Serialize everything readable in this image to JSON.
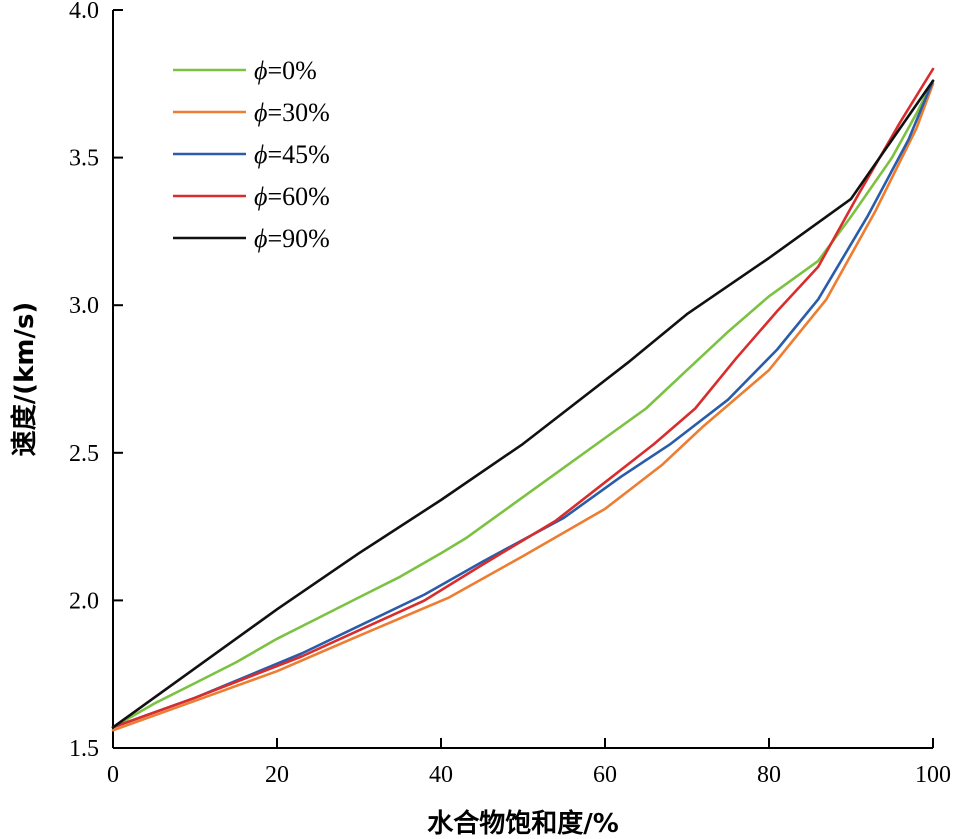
{
  "chart_data": {
    "type": "line",
    "title": "",
    "xlabel": "水合物饱和度/%",
    "ylabel": "速度/(km/s)",
    "xlim": [
      0,
      100
    ],
    "ylim": [
      1.5,
      4.0
    ],
    "x_ticks": [
      "0",
      "20",
      "40",
      "60",
      "80",
      "100"
    ],
    "y_ticks": [
      "1.5",
      "2.0",
      "2.5",
      "3.0",
      "3.5",
      "4.0"
    ],
    "grid": false,
    "legend_position": "top-left",
    "series": [
      {
        "name": "ϕ=0%",
        "legend_symbol": "ϕ",
        "legend_text": "=0%",
        "color": "#7cc242",
        "x": [
          0,
          5,
          10,
          15,
          20,
          25,
          30,
          35,
          40,
          43,
          50,
          55,
          60,
          65,
          70,
          75,
          80,
          86,
          90,
          95,
          98,
          100
        ],
        "y": [
          1.57,
          1.65,
          1.72,
          1.79,
          1.87,
          1.94,
          2.01,
          2.08,
          2.16,
          2.21,
          2.35,
          2.45,
          2.55,
          2.65,
          2.78,
          2.91,
          3.03,
          3.15,
          3.3,
          3.5,
          3.65,
          3.76
        ]
      },
      {
        "name": "ϕ=30%",
        "legend_symbol": "ϕ",
        "legend_text": "=30%",
        "color": "#ed7d31",
        "x": [
          0,
          10,
          20,
          30,
          41,
          50,
          60,
          67,
          72,
          80,
          87,
          93,
          98,
          100
        ],
        "y": [
          1.56,
          1.66,
          1.76,
          1.88,
          2.01,
          2.15,
          2.31,
          2.46,
          2.59,
          2.78,
          3.02,
          3.32,
          3.6,
          3.75
        ]
      },
      {
        "name": "ϕ=45%",
        "legend_symbol": "ϕ",
        "legend_text": "=45%",
        "color": "#2a5caa",
        "x": [
          0,
          10,
          23,
          38,
          45,
          55,
          62,
          68,
          75,
          81,
          86,
          92,
          97,
          100
        ],
        "y": [
          1.57,
          1.67,
          1.82,
          2.02,
          2.13,
          2.28,
          2.42,
          2.53,
          2.68,
          2.85,
          3.02,
          3.3,
          3.56,
          3.76
        ]
      },
      {
        "name": "ϕ=60%",
        "legend_symbol": "ϕ",
        "legend_text": "=60%",
        "color": "#d92d2d",
        "x": [
          0,
          10,
          23,
          38,
          45,
          54,
          60,
          66,
          71,
          76,
          81,
          86,
          91,
          96,
          100
        ],
        "y": [
          1.57,
          1.67,
          1.81,
          2.0,
          2.12,
          2.27,
          2.4,
          2.53,
          2.65,
          2.82,
          2.98,
          3.13,
          3.38,
          3.62,
          3.8
        ]
      },
      {
        "name": "ϕ=90%",
        "legend_symbol": "ϕ",
        "legend_text": "=90%",
        "color": "#111111",
        "x": [
          0,
          10,
          20,
          30,
          40,
          50,
          63,
          70,
          80,
          90,
          100
        ],
        "y": [
          1.57,
          1.77,
          1.97,
          2.16,
          2.34,
          2.53,
          2.81,
          2.97,
          3.16,
          3.36,
          3.76
        ]
      }
    ]
  }
}
